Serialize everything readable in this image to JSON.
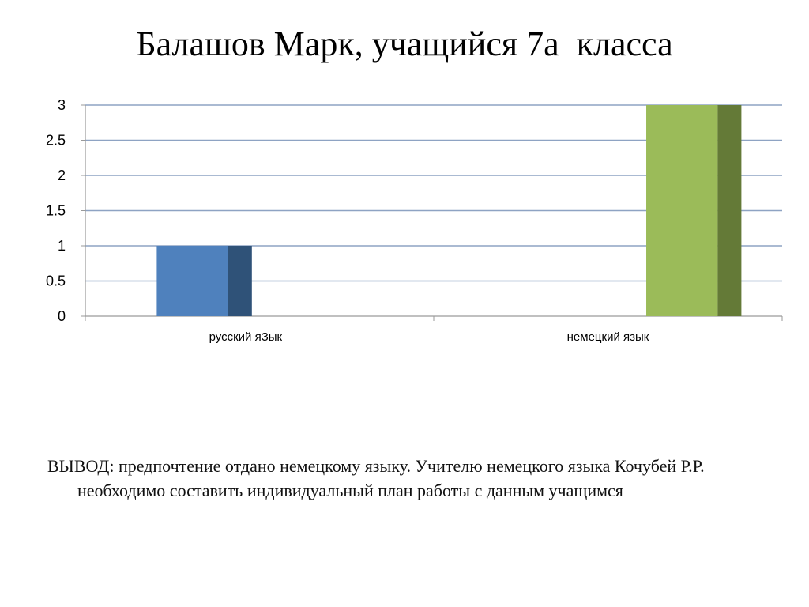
{
  "slide": {
    "title": "Балашов Марк, учащийся 7а  класса",
    "conclusion_label": "ВЫВОД:",
    "conclusion_text": "предпочтение отдано немецкому языку. Учителю немецкого языка Кочубей Р.Р. необходимо составить индивидуальный план работы с данным учащимся"
  },
  "chart_data": {
    "type": "bar",
    "title": "",
    "xlabel": "",
    "ylabel": "",
    "categories": [
      "русский яЗык",
      "немецкий язык"
    ],
    "values": [
      1,
      3
    ],
    "colors": {
      "front": [
        "#4f81bd",
        "#9bbb59"
      ],
      "side": [
        "#2f5278",
        "#647a37"
      ]
    },
    "ylim": [
      0,
      3
    ],
    "yticks": [
      "0",
      "0.5",
      "1",
      "1.5",
      "2",
      "2.5",
      "3"
    ],
    "grid": true,
    "legend": "none"
  }
}
